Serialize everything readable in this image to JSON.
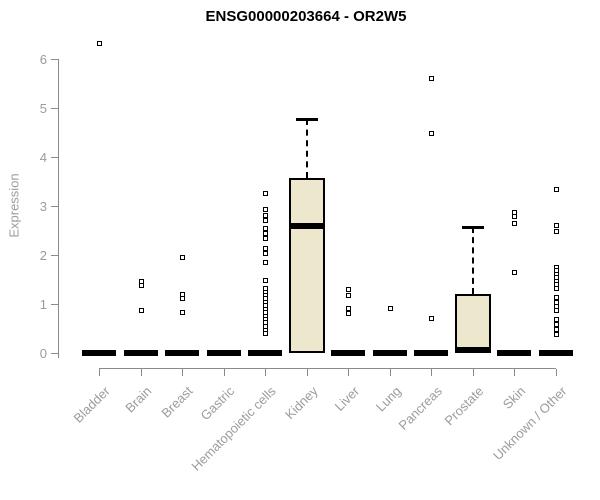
{
  "chart_data": {
    "type": "boxplot",
    "title": "ENSG00000203664 - OR2W5",
    "ylabel": "Expression",
    "xlabel": "",
    "ylim": [
      0,
      6.4
    ],
    "yticks": [
      0,
      1,
      2,
      3,
      4,
      5,
      6
    ],
    "grid": "off",
    "legend": "none",
    "box_fill_color": "#EDE7CE",
    "box_line_color": "#000000",
    "axis_color": "#8a8a8a",
    "label_color": "#9c9c9c",
    "categories": [
      "Bladder",
      "Brain",
      "Breast",
      "Gastric",
      "Hematopoietic cells",
      "Kidney",
      "Liver",
      "Lung",
      "Pancreas",
      "Prostate",
      "Skin",
      "Unknown / Other"
    ],
    "series": [
      {
        "name": "Bladder",
        "box": {
          "q1": 0,
          "median": 0,
          "q3": 0,
          "whisker_low": 0,
          "whisker_high": 0
        },
        "outliers": [
          6.34
        ]
      },
      {
        "name": "Brain",
        "box": {
          "q1": 0,
          "median": 0,
          "q3": 0,
          "whisker_low": 0,
          "whisker_high": 0
        },
        "outliers": [
          1.47,
          1.39,
          0.88
        ]
      },
      {
        "name": "Breast",
        "box": {
          "q1": 0,
          "median": 0,
          "q3": 0,
          "whisker_low": 0,
          "whisker_high": 0
        },
        "outliers": [
          1.97,
          1.21,
          1.13,
          0.85
        ]
      },
      {
        "name": "Gastric",
        "box": {
          "q1": 0,
          "median": 0,
          "q3": 0,
          "whisker_low": 0,
          "whisker_high": 0
        },
        "outliers": []
      },
      {
        "name": "Hematopoietic cells",
        "box": {
          "q1": 0,
          "median": 0,
          "q3": 0,
          "whisker_low": 0,
          "whisker_high": 0
        },
        "outliers": [
          3.27,
          2.95,
          2.82,
          2.72,
          2.55,
          2.45,
          2.35,
          2.14,
          2.04,
          1.87,
          1.5,
          1.33,
          1.26,
          1.19,
          1.12,
          1.05,
          0.98,
          0.91,
          0.84,
          0.77,
          0.7,
          0.63,
          0.55,
          0.48,
          0.41
        ]
      },
      {
        "name": "Kidney",
        "box": {
          "q1": 0,
          "median": 2.6,
          "q3": 3.57,
          "whisker_low": 0,
          "whisker_high": 4.78
        },
        "outliers": []
      },
      {
        "name": "Liver",
        "box": {
          "q1": 0,
          "median": 0,
          "q3": 0,
          "whisker_low": 0,
          "whisker_high": 0
        },
        "outliers": [
          1.32,
          1.18,
          0.92,
          0.82
        ]
      },
      {
        "name": "Lung",
        "box": {
          "q1": 0,
          "median": 0,
          "q3": 0,
          "whisker_low": 0,
          "whisker_high": 0
        },
        "outliers": [
          0.93
        ]
      },
      {
        "name": "Pancreas",
        "box": {
          "q1": 0,
          "median": 0,
          "q3": 0,
          "whisker_low": 0,
          "whisker_high": 0
        },
        "outliers": [
          5.61,
          4.49,
          0.73
        ]
      },
      {
        "name": "Prostate",
        "box": {
          "q1": 0,
          "median": 0,
          "q3": 1.22,
          "whisker_low": 0,
          "whisker_high": 2.58
        },
        "outliers": []
      },
      {
        "name": "Skin",
        "box": {
          "q1": 0,
          "median": 0,
          "q3": 0,
          "whisker_low": 0,
          "whisker_high": 0
        },
        "outliers": [
          2.89,
          2.8,
          2.65,
          1.66
        ]
      },
      {
        "name": "Unknown / Other",
        "box": {
          "q1": 0,
          "median": 0,
          "q3": 0,
          "whisker_low": 0,
          "whisker_high": 0
        },
        "outliers": [
          3.35,
          2.61,
          2.49,
          1.76,
          1.69,
          1.62,
          1.55,
          1.48,
          1.41,
          1.34,
          1.14,
          1.05,
          0.96,
          0.88,
          0.7,
          0.6,
          0.5,
          0.4
        ]
      }
    ]
  }
}
